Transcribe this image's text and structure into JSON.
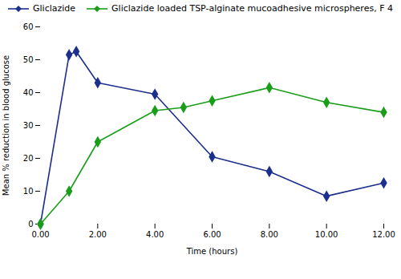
{
  "chart_data": {
    "type": "line",
    "xlabel": "Time (hours)",
    "ylabel": "Mean % reduction in blood glucose",
    "series": [
      {
        "name": "Gliclazide",
        "color": "#1c2f8c",
        "x": [
          0.0,
          1.0,
          1.25,
          2.0,
          4.0,
          6.0,
          8.0,
          10.0,
          12.0
        ],
        "values": [
          0.0,
          51.5,
          52.5,
          43.0,
          39.5,
          20.5,
          16.0,
          8.5,
          12.5
        ]
      },
      {
        "name": "Gliclazide loaded TSP-alginate mucoadhesive microspheres, F 4",
        "color": "#1a9e1a",
        "x": [
          0.0,
          1.0,
          2.0,
          4.0,
          5.0,
          6.0,
          8.0,
          10.0,
          12.0
        ],
        "values": [
          0.0,
          10.0,
          25.0,
          34.5,
          35.5,
          37.5,
          41.5,
          37.0,
          34.0
        ]
      }
    ],
    "marker": "diamond",
    "xlim": [
      0.0,
      12.0
    ],
    "ylim": [
      0,
      60
    ],
    "xticks": [
      {
        "value": 0,
        "label": "0.00"
      },
      {
        "value": 2,
        "label": "2.00"
      },
      {
        "value": 4,
        "label": "4.00"
      },
      {
        "value": 6,
        "label": "6.00"
      },
      {
        "value": 8,
        "label": "8.00"
      },
      {
        "value": 10,
        "label": "10.00"
      },
      {
        "value": 12,
        "label": "12.00"
      }
    ],
    "yticks": [
      0,
      10,
      20,
      30,
      40,
      50,
      60
    ],
    "grid": false,
    "legend": "top"
  }
}
